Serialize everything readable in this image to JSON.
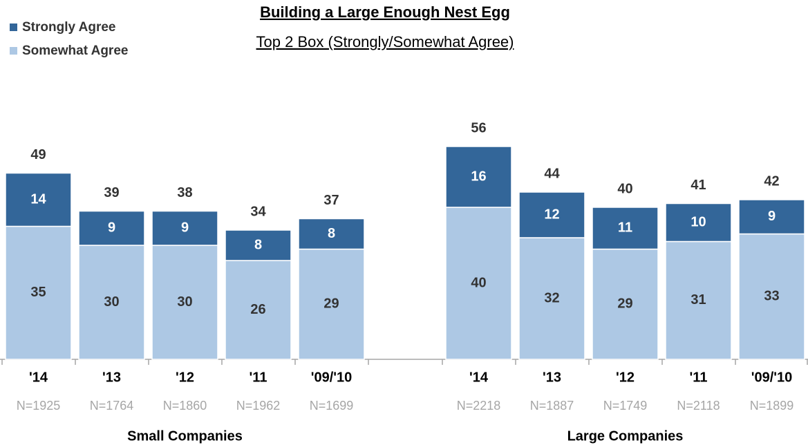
{
  "chart_data": {
    "type": "stacked-bar",
    "title": "Building a Large Enough Nest Egg",
    "subtitle": "Top 2 Box (Strongly/Somewhat Agree)",
    "series": [
      {
        "name": "Strongly Agree",
        "color": "#336699"
      },
      {
        "name": "Somewhat Agree",
        "color": "#adc8e4"
      }
    ],
    "panels": [
      {
        "name": "Small Companies",
        "categories": [
          "'14",
          "'13",
          "'12",
          "'11",
          "'09/'10"
        ],
        "sample_sizes": [
          "N=1925",
          "N=1764",
          "N=1860",
          "N=1962",
          "N=1699"
        ],
        "totals": [
          49,
          39,
          38,
          34,
          37
        ],
        "series": [
          {
            "values": [
              14,
              9,
              9,
              8,
              8
            ]
          },
          {
            "values": [
              35,
              30,
              30,
              26,
              29
            ]
          }
        ]
      },
      {
        "name": "Large Companies",
        "categories": [
          "'14",
          "'13",
          "'12",
          "'11",
          "'09/'10"
        ],
        "sample_sizes": [
          "N=2218",
          "N=1887",
          "N=1749",
          "N=2118",
          "N=1899"
        ],
        "totals": [
          56,
          44,
          40,
          41,
          42
        ],
        "series": [
          {
            "values": [
              16,
              12,
              11,
              10,
              9
            ]
          },
          {
            "values": [
              40,
              32,
              29,
              31,
              33
            ]
          }
        ]
      }
    ]
  }
}
